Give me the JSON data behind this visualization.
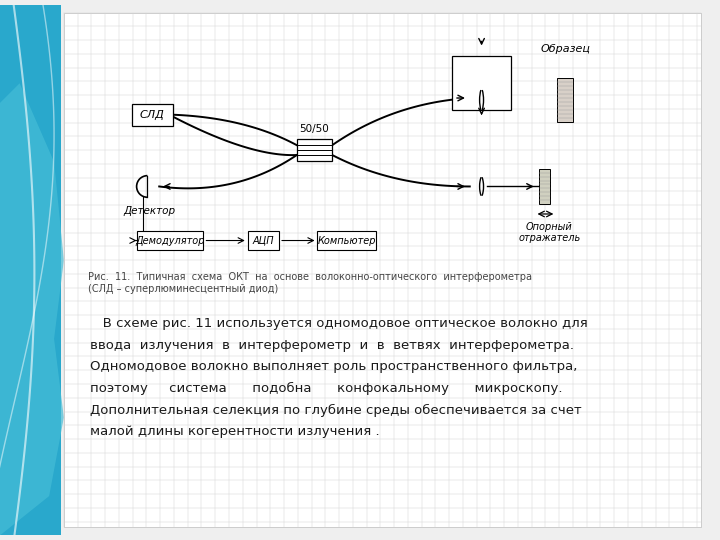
{
  "bg_color": "#efefef",
  "grid_color": "#d5d5d5",
  "slide_color": "#ffffff",
  "blue_main": "#29a8cc",
  "blue_light": "#6dcde0",
  "blue_dark": "#1a8aaa",
  "text_color": "#1a1a1a",
  "caption_color": "#444444",
  "caption": "Рис.  11.  Типичная  схема  ОКТ  на  основе  волоконно-оптического  интерферометра\n(СЛД – суперлюминесцентный диод)",
  "body_lines": [
    "   В схеме рис. 11 используется одномодовое оптическое волокно для",
    "ввода  излучения  в  интерферометр  и  в  ветвях  интерферометра.",
    "Одномодовое волокно выполняет роль пространственного фильтра,",
    "поэтому     система      подобна      конфокальному      микроскопу.",
    "Дополнительная селекция по глубине среды обеспечивается за счет",
    "малой длины когерентности излучения ."
  ]
}
